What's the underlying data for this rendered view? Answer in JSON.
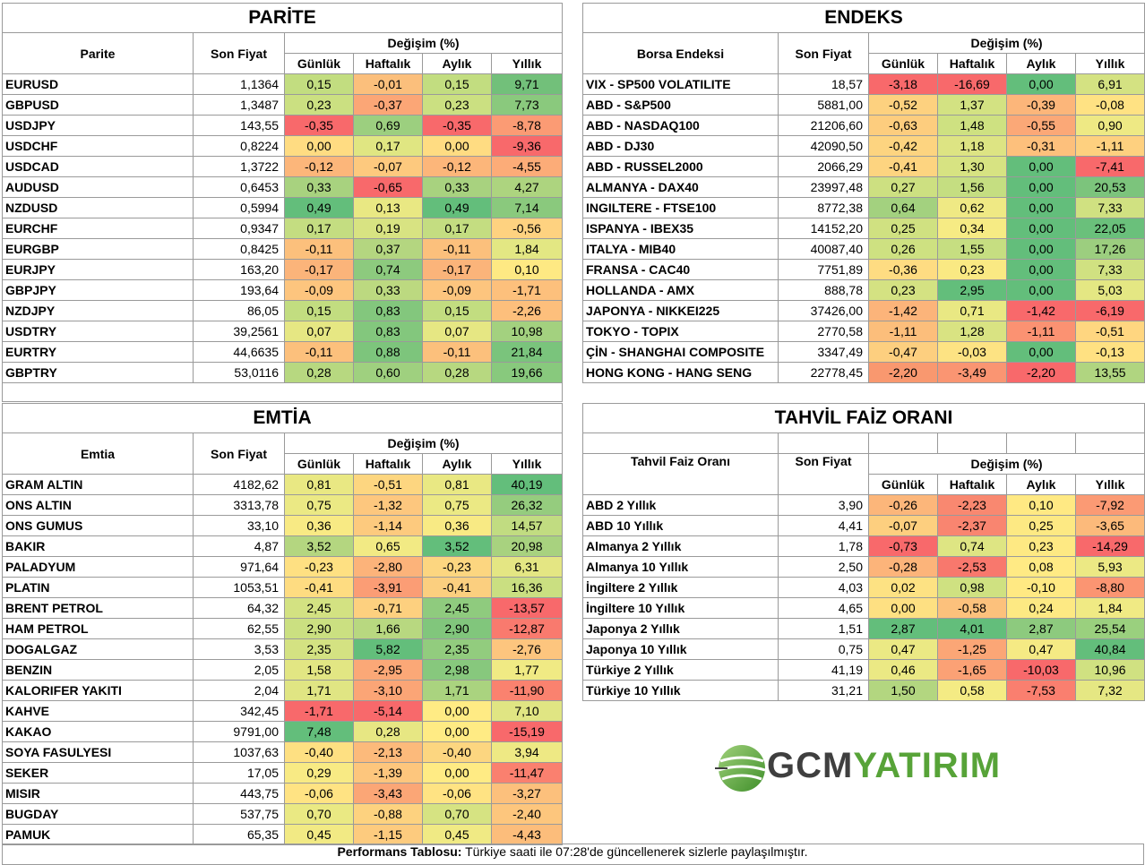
{
  "parite": {
    "title": "PARİTE",
    "col_name": "Parite",
    "col_price": "Son Fiyat",
    "col_change": "Değişim (%)",
    "periods": [
      "Günlük",
      "Haftalık",
      "Aylık",
      "Yıllık"
    ],
    "rows": [
      [
        "EURUSD",
        "1,1364",
        "0,15",
        "-0,01",
        "0,15",
        "9,71"
      ],
      [
        "GBPUSD",
        "1,3487",
        "0,23",
        "-0,37",
        "0,23",
        "7,73"
      ],
      [
        "USDJPY",
        "143,55",
        "-0,35",
        "0,69",
        "-0,35",
        "-8,78"
      ],
      [
        "USDCHF",
        "0,8224",
        "0,00",
        "0,17",
        "0,00",
        "-9,36"
      ],
      [
        "USDCAD",
        "1,3722",
        "-0,12",
        "-0,07",
        "-0,12",
        "-4,55"
      ],
      [
        "AUDUSD",
        "0,6453",
        "0,33",
        "-0,65",
        "0,33",
        "4,27"
      ],
      [
        "NZDUSD",
        "0,5994",
        "0,49",
        "0,13",
        "0,49",
        "7,14"
      ],
      [
        "EURCHF",
        "0,9347",
        "0,17",
        "0,19",
        "0,17",
        "-0,56"
      ],
      [
        "EURGBP",
        "0,8425",
        "-0,11",
        "0,37",
        "-0,11",
        "1,84"
      ],
      [
        "EURJPY",
        "163,20",
        "-0,17",
        "0,74",
        "-0,17",
        "0,10"
      ],
      [
        "GBPJPY",
        "193,64",
        "-0,09",
        "0,33",
        "-0,09",
        "-1,71"
      ],
      [
        "NZDJPY",
        "86,05",
        "0,15",
        "0,83",
        "0,15",
        "-2,26"
      ],
      [
        "USDTRY",
        "39,2561",
        "0,07",
        "0,83",
        "0,07",
        "10,98"
      ],
      [
        "EURTRY",
        "44,6635",
        "-0,11",
        "0,88",
        "-0,11",
        "21,84"
      ],
      [
        "GBPTRY",
        "53,0116",
        "0,28",
        "0,60",
        "0,28",
        "19,66"
      ]
    ],
    "colors": [
      [
        "#c2dd80",
        "#fbbf7c",
        "#c2dd80",
        "#72c07a"
      ],
      [
        "#cbe081",
        "#fba676",
        "#cbe081",
        "#8ac97d"
      ],
      [
        "#f8696b",
        "#9ccf7f",
        "#f8696b",
        "#fb9b74"
      ],
      [
        "#ffdc82",
        "#e0e682",
        "#ffdc82",
        "#f8696b"
      ],
      [
        "#fcb67a",
        "#fdc97e",
        "#fcb67a",
        "#fcac78"
      ],
      [
        "#a8d27f",
        "#f8696b",
        "#a8d27f",
        "#add47f"
      ],
      [
        "#63be7b",
        "#e9e883",
        "#63be7b",
        "#8ac97d"
      ],
      [
        "#c4dd81",
        "#d8e382",
        "#c4dd81",
        "#fed280"
      ],
      [
        "#fcc07c",
        "#b4d680",
        "#fcc07c",
        "#e3e783"
      ],
      [
        "#fbb47a",
        "#8dca7e",
        "#fbb47a",
        "#fee983"
      ],
      [
        "#fdc57e",
        "#bcd980",
        "#fdc57e",
        "#fdc07c"
      ],
      [
        "#c2dd80",
        "#83c77d",
        "#c2dd80",
        "#fdbf7c"
      ],
      [
        "#e6e783",
        "#83c77d",
        "#e6e783",
        "#a3d17f"
      ],
      [
        "#fcc07c",
        "#7dc57c",
        "#fcc07c",
        "#7ac47c"
      ],
      [
        "#b7d880",
        "#9fd07f",
        "#b7d880",
        "#88c97d"
      ]
    ]
  },
  "endeks": {
    "title": "ENDEKS",
    "col_name": "Borsa Endeksi",
    "col_price": "Son Fiyat",
    "col_change": "Değişim (%)",
    "periods": [
      "Günlük",
      "Haftalık",
      "Aylık",
      "Yıllık"
    ],
    "rows": [
      [
        "VIX  - SP500 VOLATILITE",
        "18,57",
        "-3,18",
        "-16,69",
        "0,00",
        "6,91"
      ],
      [
        "ABD - S&P500",
        "5881,00",
        "-0,52",
        "1,37",
        "-0,39",
        "-0,08"
      ],
      [
        "ABD - NASDAQ100",
        "21206,60",
        "-0,63",
        "1,48",
        "-0,55",
        "0,90"
      ],
      [
        "ABD - DJ30",
        "42090,50",
        "-0,42",
        "1,18",
        "-0,31",
        "-1,11"
      ],
      [
        "ABD - RUSSEL2000",
        "2066,29",
        "-0,41",
        "1,30",
        "0,00",
        "-7,41"
      ],
      [
        "ALMANYA - DAX40",
        "23997,48",
        "0,27",
        "1,56",
        "0,00",
        "20,53"
      ],
      [
        "INGILTERE - FTSE100",
        "8772,38",
        "0,64",
        "0,62",
        "0,00",
        "7,33"
      ],
      [
        "ISPANYA - IBEX35",
        "14152,20",
        "0,25",
        "0,34",
        "0,00",
        "22,05"
      ],
      [
        "ITALYA - MIB40",
        "40087,40",
        "0,26",
        "1,55",
        "0,00",
        "17,26"
      ],
      [
        "FRANSA - CAC40",
        "7751,89",
        "-0,36",
        "0,23",
        "0,00",
        "7,33"
      ],
      [
        "HOLLANDA - AMX",
        "888,78",
        "0,23",
        "2,95",
        "0,00",
        "5,03"
      ],
      [
        "JAPONYA - NIKKEI225",
        "37426,00",
        "-1,42",
        "0,71",
        "-1,42",
        "-6,19"
      ],
      [
        "TOKYO - TOPIX",
        "2770,58",
        "-1,11",
        "1,28",
        "-1,11",
        "-0,51"
      ],
      [
        "ÇİN - SHANGHAI COMPOSITE",
        "3347,49",
        "-0,47",
        "-0,03",
        "0,00",
        "-0,13"
      ],
      [
        "HONG KONG - HANG SENG",
        "22778,45",
        "-2,20",
        "-3,49",
        "-2,20",
        "13,55"
      ]
    ],
    "colors": [
      [
        "#f8696b",
        "#f8696b",
        "#63be7b",
        "#d4e282"
      ],
      [
        "#fdd17f",
        "#d3e282",
        "#fcb67a",
        "#ffe283"
      ],
      [
        "#fdcd7e",
        "#cee181",
        "#fba877",
        "#eee984"
      ],
      [
        "#fdd480",
        "#dde483",
        "#fdc07c",
        "#fed07f"
      ],
      [
        "#fdd480",
        "#d7e382",
        "#63be7b",
        "#f8696b"
      ],
      [
        "#cde081",
        "#c5de81",
        "#63be7b",
        "#7cc47c"
      ],
      [
        "#a3d17f",
        "#efe984",
        "#63be7b",
        "#d0e181"
      ],
      [
        "#d0e181",
        "#f6eb84",
        "#63be7b",
        "#6ac07b"
      ],
      [
        "#cee181",
        "#c6de81",
        "#63be7b",
        "#9cce7f"
      ],
      [
        "#fedc82",
        "#fae983",
        "#63be7b",
        "#d0e181"
      ],
      [
        "#d4e282",
        "#63be7b",
        "#63be7b",
        "#e4e783"
      ],
      [
        "#fcb47a",
        "#e9e883",
        "#f8696b",
        "#f8696b"
      ],
      [
        "#fcbe7b",
        "#d9e382",
        "#fb9272",
        "#ffd680"
      ],
      [
        "#fdcf7f",
        "#fde383",
        "#63be7b",
        "#ffe182"
      ],
      [
        "#f9986f",
        "#fa9572",
        "#f8696b",
        "#b0d580"
      ]
    ]
  },
  "emtia": {
    "title": "EMTİA",
    "col_name": "Emtia",
    "col_price": "Son Fiyat",
    "col_change": "Değişim (%)",
    "periods": [
      "Günlük",
      "Haftalık",
      "Aylık",
      "Yıllık"
    ],
    "rows": [
      [
        "GRAM ALTIN",
        "4182,62",
        "0,81",
        "-0,51",
        "0,81",
        "40,19"
      ],
      [
        "ONS ALTIN",
        "3313,78",
        "0,75",
        "-1,32",
        "0,75",
        "26,32"
      ],
      [
        "ONS GUMUS",
        "33,10",
        "0,36",
        "-1,14",
        "0,36",
        "14,57"
      ],
      [
        "BAKIR",
        "4,87",
        "3,52",
        "0,65",
        "3,52",
        "20,98"
      ],
      [
        "PALADYUM",
        "971,64",
        "-0,23",
        "-2,80",
        "-0,23",
        "6,31"
      ],
      [
        "PLATIN",
        "1053,51",
        "-0,41",
        "-3,91",
        "-0,41",
        "16,36"
      ],
      [
        "BRENT PETROL",
        "64,32",
        "2,45",
        "-0,71",
        "2,45",
        "-13,57"
      ],
      [
        "HAM PETROL",
        "62,55",
        "2,90",
        "1,66",
        "2,90",
        "-12,87"
      ],
      [
        "DOGALGAZ",
        "3,53",
        "2,35",
        "5,82",
        "2,35",
        "-2,76"
      ],
      [
        "BENZIN",
        "2,05",
        "1,58",
        "-2,95",
        "2,98",
        "1,77"
      ],
      [
        "KALORIFER YAKITI",
        "2,04",
        "1,71",
        "-3,10",
        "1,71",
        "-11,90"
      ],
      [
        "KAHVE",
        "342,45",
        "-1,71",
        "-5,14",
        "0,00",
        "7,10"
      ],
      [
        "KAKAO",
        "9791,00",
        "7,48",
        "0,28",
        "0,00",
        "-15,19"
      ],
      [
        "SOYA FASULYESI",
        "1037,63",
        "-0,40",
        "-2,13",
        "-0,40",
        "3,94"
      ],
      [
        "SEKER",
        "17,05",
        "0,29",
        "-1,39",
        "0,00",
        "-11,47"
      ],
      [
        "MISIR",
        "443,75",
        "-0,06",
        "-3,43",
        "-0,06",
        "-3,27"
      ],
      [
        "BUGDAY",
        "537,75",
        "0,70",
        "-0,88",
        "0,70",
        "-2,40"
      ],
      [
        "PAMUK",
        "65,35",
        "0,45",
        "-1,15",
        "0,45",
        "-4,43"
      ]
    ],
    "colors": [
      [
        "#e9e883",
        "#fdd680",
        "#e9e883",
        "#63be7b"
      ],
      [
        "#ebe984",
        "#fdc77e",
        "#ebe984",
        "#95cc7e"
      ],
      [
        "#f8ea84",
        "#fdca7e",
        "#f8ea84",
        "#c1dc81"
      ],
      [
        "#b4d680",
        "#f2ea84",
        "#63be7b",
        "#a8d27f"
      ],
      [
        "#fee082",
        "#fcb37a",
        "#fcd680",
        "#e4e683"
      ],
      [
        "#fedc81",
        "#fb9d75",
        "#fbcf7f",
        "#cadf81"
      ],
      [
        "#d3e282",
        "#fdd07f",
        "#8fcb7e",
        "#f8696b"
      ],
      [
        "#cbe081",
        "#b8d880",
        "#81c67c",
        "#f97a6e"
      ],
      [
        "#d4e282",
        "#63be7b",
        "#92cc7e",
        "#fdc57e"
      ],
      [
        "#e2e683",
        "#fba877",
        "#87c87d",
        "#f0ea84"
      ],
      [
        "#e0e583",
        "#fba576",
        "#aad37f",
        "#fa826f"
      ],
      [
        "#f8696b",
        "#f8696b",
        "#ffeb84",
        "#e0e583"
      ],
      [
        "#63be7b",
        "#e7e783",
        "#ffeb84",
        "#f8696b"
      ],
      [
        "#fee082",
        "#fcba7b",
        "#fcd680",
        "#eee984"
      ],
      [
        "#f8ea84",
        "#fdc67d",
        "#ffeb84",
        "#fa806f"
      ],
      [
        "#ffe383",
        "#fba676",
        "#ffe383",
        "#fcc07c"
      ],
      [
        "#eae983",
        "#fdd27f",
        "#d6e382",
        "#fdc67d"
      ],
      [
        "#f2ea84",
        "#fdcb7e",
        "#f0ea84",
        "#fcbd7b"
      ]
    ]
  },
  "tahvil": {
    "title": "TAHVİL FAİZ ORANI",
    "col_name": "Tahvil Faiz Oranı",
    "col_price": "Son Fiyat",
    "col_change": "Değişim (%)",
    "periods": [
      "Günlük",
      "Haftalık",
      "Aylık",
      "Yıllık"
    ],
    "rows": [
      [
        "ABD 2 Yıllık",
        "3,90",
        "-0,26",
        "-2,23",
        "0,10",
        "-7,92"
      ],
      [
        "ABD 10 Yıllık",
        "4,41",
        "-0,07",
        "-2,37",
        "0,25",
        "-3,65"
      ],
      [
        "Almanya 2 Yıllık",
        "1,78",
        "-0,73",
        "0,74",
        "0,23",
        "-14,29"
      ],
      [
        "Almanya 10 Yıllık",
        "2,50",
        "-0,28",
        "-2,53",
        "0,08",
        "5,93"
      ],
      [
        "İngiltere 2 Yıllık",
        "4,03",
        "0,02",
        "0,98",
        "-0,10",
        "-8,80"
      ],
      [
        "İngiltere 10 Yıllık",
        "4,65",
        "0,00",
        "-0,58",
        "0,24",
        "1,84"
      ],
      [
        "Japonya 2 Yıllık",
        "1,51",
        "2,87",
        "4,01",
        "2,87",
        "25,54"
      ],
      [
        "Japonya 10 Yıllık",
        "0,75",
        "0,47",
        "-1,25",
        "0,47",
        "40,84"
      ],
      [
        "Türkiye 2 Yıllık",
        "41,19",
        "0,46",
        "-1,65",
        "-10,03",
        "10,96"
      ],
      [
        "Türkiye 10 Yıllık",
        "31,21",
        "1,50",
        "0,58",
        "-7,53",
        "7,32"
      ]
    ],
    "colors": [
      [
        "#fcb67a",
        "#f98870",
        "#ffe983",
        "#fb9a74"
      ],
      [
        "#fdcf7f",
        "#f98570",
        "#fde983",
        "#fcba7b"
      ],
      [
        "#f8696b",
        "#dee583",
        "#fee983",
        "#f8696b"
      ],
      [
        "#fcb47a",
        "#f8786d",
        "#ffea84",
        "#ece984"
      ],
      [
        "#fde283",
        "#cfe181",
        "#ffe983",
        "#fb9572"
      ],
      [
        "#fee082",
        "#fcc17c",
        "#fde983",
        "#f0ea84"
      ],
      [
        "#63be7b",
        "#63be7b",
        "#8dca7e",
        "#9ad07e"
      ],
      [
        "#ebe984",
        "#fba676",
        "#f5ea84",
        "#63be7b"
      ],
      [
        "#ebe984",
        "#fba175",
        "#f8696b",
        "#d0e181"
      ],
      [
        "#b3d680",
        "#f4eb84",
        "#fa7f6f",
        "#e5e783"
      ]
    ]
  },
  "logo": {
    "part1": "GCM",
    "part2": "YATIRIM"
  },
  "footer": {
    "label": "Performans Tablosu:",
    "text": " Türkiye saati ile 07:28'de güncellenerek sizlerle paylaşılmıştır."
  }
}
